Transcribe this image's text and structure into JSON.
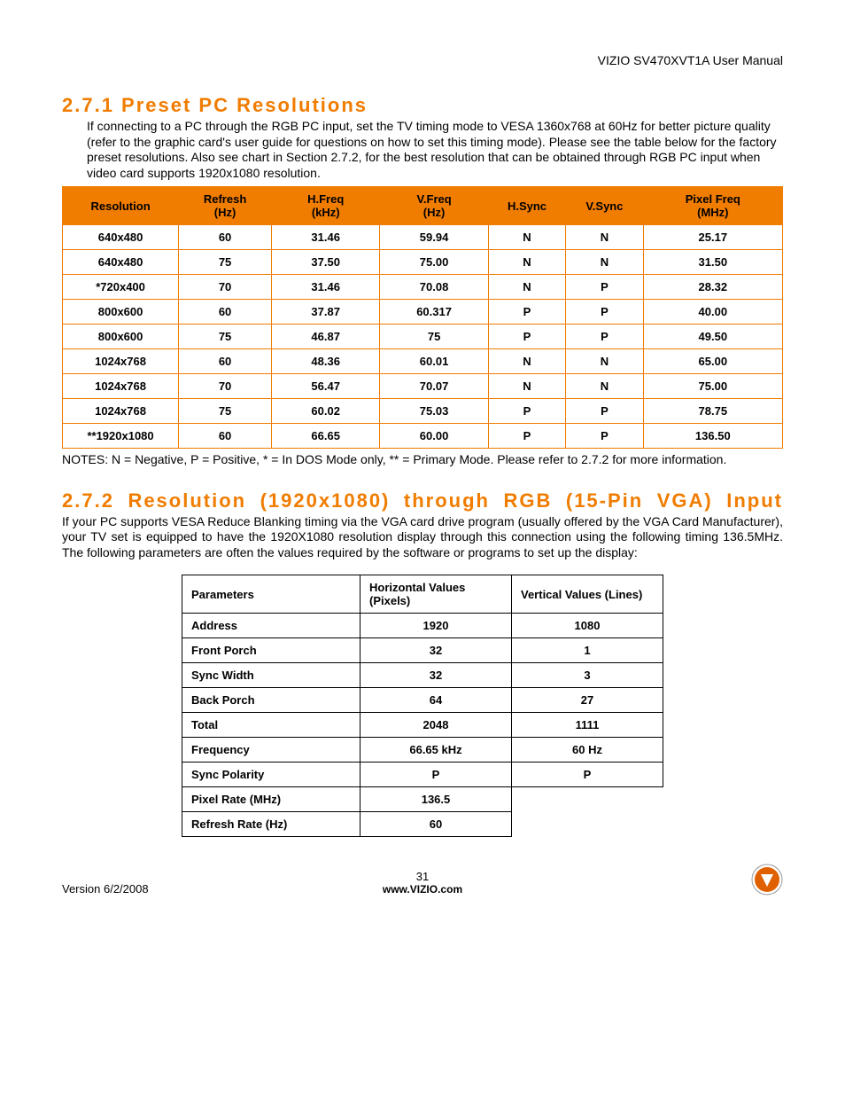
{
  "header": {
    "manual_title": "VIZIO SV470XVT1A User Manual"
  },
  "section1": {
    "heading": "2.7.1 Preset PC Resolutions",
    "para": "If connecting to a PC through the RGB PC input, set the TV timing mode to VESA 1360x768 at 60Hz for better picture quality (refer to the graphic card's user guide for questions on how to set this timing mode).  Please see the table below for the factory preset resolutions. Also see chart in Section 2.7.2, for the best resolution that can be obtained through RGB PC input when video card supports 1920x1080 resolution.",
    "table": {
      "columns": [
        {
          "label": "Resolution",
          "width": "15%"
        },
        {
          "label": "Refresh (Hz)",
          "width": "12%"
        },
        {
          "label": "H.Freq (kHz)",
          "width": "14%"
        },
        {
          "label": "V.Freq (Hz)",
          "width": "14%"
        },
        {
          "label": "H.Sync",
          "width": "10%"
        },
        {
          "label": "V.Sync",
          "width": "10%"
        },
        {
          "label": "Pixel Freq (MHz)",
          "width": "18%"
        }
      ],
      "rows": [
        [
          "640x480",
          "60",
          "31.46",
          "59.94",
          "N",
          "N",
          "25.17"
        ],
        [
          "640x480",
          "75",
          "37.50",
          "75.00",
          "N",
          "N",
          "31.50"
        ],
        [
          "*720x400",
          "70",
          "31.46",
          "70.08",
          "N",
          "P",
          "28.32"
        ],
        [
          "800x600",
          "60",
          "37.87",
          "60.317",
          "P",
          "P",
          "40.00"
        ],
        [
          "800x600",
          "75",
          "46.87",
          "75",
          "P",
          "P",
          "49.50"
        ],
        [
          "1024x768",
          "60",
          "48.36",
          "60.01",
          "N",
          "N",
          "65.00"
        ],
        [
          "1024x768",
          "70",
          "56.47",
          "70.07",
          "N",
          "N",
          "75.00"
        ],
        [
          "1024x768",
          "75",
          "60.02",
          "75.03",
          "P",
          "P",
          "78.75"
        ],
        [
          "**1920x1080",
          "60",
          "66.65",
          "60.00",
          "P",
          "P",
          "136.50"
        ]
      ]
    },
    "notes": "NOTES: N = Negative, P = Positive, * = In DOS Mode only, ** = Primary Mode. Please refer to 2.7.2 for more information."
  },
  "section2": {
    "heading": "2.7.2 Resolution (1920x1080) through RGB (15-Pin VGA) Input",
    "para": "If your PC supports VESA Reduce Blanking timing via the VGA card drive program (usually offered by the VGA Card Manufacturer), your TV set is equipped to have the 1920X1080 resolution display through this connection using the following timing 136.5MHz. The following parameters are often the values required by the software or programs to set up the display:",
    "table": {
      "columns": [
        "Parameters",
        "Horizontal Values (Pixels)",
        "Vertical Values (Lines)"
      ],
      "col_widths": [
        "180px",
        "150px",
        "150px"
      ],
      "rows": [
        {
          "p": "Address",
          "h": "1920",
          "v": "1080"
        },
        {
          "p": "Front Porch",
          "h": "32",
          "v": "1"
        },
        {
          "p": "Sync Width",
          "h": "32",
          "v": "3"
        },
        {
          "p": "Back Porch",
          "h": "64",
          "v": "27"
        },
        {
          "p": "Total",
          "h": "2048",
          "v": "1111"
        },
        {
          "p": "Frequency",
          "h": "66.65 kHz",
          "v": "60 Hz"
        },
        {
          "p": "Sync Polarity",
          "h": "P",
          "v": "P"
        },
        {
          "p": "Pixel Rate (MHz)",
          "h": "136.5",
          "v": null
        },
        {
          "p": "Refresh Rate (Hz)",
          "h": "60",
          "v": null
        }
      ]
    }
  },
  "footer": {
    "version": "Version 6/2/2008",
    "page": "31",
    "url": "www.VIZIO.com"
  },
  "colors": {
    "accent": "#f07c00",
    "text": "#000000",
    "background": "#ffffff"
  }
}
